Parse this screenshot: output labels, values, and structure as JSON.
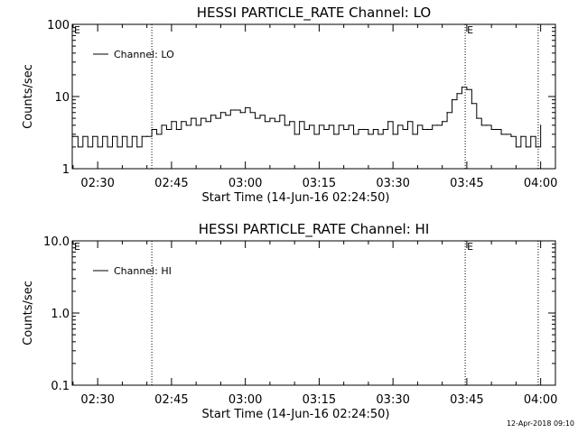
{
  "footer": {
    "timestamp": "12-Apr-2018 09:10"
  },
  "chart_data": [
    {
      "type": "line",
      "title": "HESSI PARTICLE_RATE Channel: LO",
      "xlabel": "Start Time (14-Jun-16 02:24:50)",
      "ylabel": "Counts/sec",
      "yscale": "log",
      "ylim": [
        1,
        100
      ],
      "yticks": [
        1,
        10,
        100
      ],
      "ytick_labels": [
        "1",
        "10",
        "100"
      ],
      "xlim": [
        "02:24:50",
        "04:03:00"
      ],
      "xticks": [
        "02:30",
        "02:45",
        "03:00",
        "03:15",
        "03:30",
        "03:45",
        "04:00"
      ],
      "xtick_labels": [
        "02:30",
        "02:45",
        "03:00",
        "03:15",
        "03:30",
        "03:45",
        "04:00"
      ],
      "grid": false,
      "legend": {
        "position": "top-left",
        "entries": [
          "Channel: LO"
        ]
      },
      "vlines": [
        "02:41:00",
        "03:44:40",
        "03:59:30"
      ],
      "annotations": [
        {
          "text": "E",
          "x": "02:24:50"
        },
        {
          "text": "E",
          "x": "03:44:40"
        }
      ],
      "series": [
        {
          "name": "Channel: LO",
          "x": [
            "02:25:00",
            "02:26:00",
            "02:27:00",
            "02:28:00",
            "02:29:00",
            "02:30:00",
            "02:31:00",
            "02:32:00",
            "02:33:00",
            "02:34:00",
            "02:35:00",
            "02:36:00",
            "02:37:00",
            "02:38:00",
            "02:39:00",
            "02:40:00",
            "02:41:00",
            "02:42:00",
            "02:43:00",
            "02:44:00",
            "02:45:00",
            "02:46:00",
            "02:47:00",
            "02:48:00",
            "02:49:00",
            "02:50:00",
            "02:51:00",
            "02:52:00",
            "02:53:00",
            "02:54:00",
            "02:55:00",
            "02:56:00",
            "02:57:00",
            "02:58:00",
            "02:59:00",
            "03:00:00",
            "03:01:00",
            "03:02:00",
            "03:03:00",
            "03:04:00",
            "03:05:00",
            "03:06:00",
            "03:07:00",
            "03:08:00",
            "03:09:00",
            "03:10:00",
            "03:11:00",
            "03:12:00",
            "03:13:00",
            "03:14:00",
            "03:15:00",
            "03:16:00",
            "03:17:00",
            "03:18:00",
            "03:19:00",
            "03:20:00",
            "03:21:00",
            "03:22:00",
            "03:23:00",
            "03:24:00",
            "03:25:00",
            "03:26:00",
            "03:27:00",
            "03:28:00",
            "03:29:00",
            "03:30:00",
            "03:31:00",
            "03:32:00",
            "03:33:00",
            "03:34:00",
            "03:35:00",
            "03:36:00",
            "03:37:00",
            "03:38:00",
            "03:39:00",
            "03:40:00",
            "03:41:00",
            "03:42:00",
            "03:43:00",
            "03:44:00",
            "03:45:00",
            "03:46:00",
            "03:47:00",
            "03:48:00",
            "03:49:00",
            "03:50:00",
            "03:51:00",
            "03:52:00",
            "03:53:00",
            "03:54:00",
            "03:55:00",
            "03:56:00",
            "03:57:00",
            "03:58:00",
            "03:59:00",
            "04:00:00"
          ],
          "y": [
            2.8,
            2.0,
            2.8,
            2.0,
            2.8,
            2.0,
            2.8,
            2.0,
            2.8,
            2.0,
            2.8,
            2.0,
            2.8,
            2.0,
            2.8,
            2.8,
            3.5,
            3.0,
            4.0,
            3.5,
            4.5,
            3.5,
            4.5,
            4.0,
            5.0,
            4.0,
            5.0,
            4.5,
            5.5,
            5.0,
            6.0,
            5.5,
            6.5,
            6.5,
            6.0,
            7.0,
            6.0,
            5.0,
            5.5,
            4.5,
            5.0,
            4.5,
            5.5,
            4.0,
            4.5,
            3.0,
            4.5,
            3.5,
            4.0,
            3.0,
            4.0,
            3.5,
            4.0,
            3.0,
            4.0,
            3.5,
            4.0,
            3.0,
            3.5,
            3.5,
            3.0,
            3.5,
            3.0,
            3.5,
            4.5,
            3.0,
            4.0,
            3.5,
            4.5,
            3.0,
            4.0,
            3.5,
            3.5,
            4.0,
            4.0,
            4.5,
            6.0,
            9.0,
            11.0,
            13.5,
            12.5,
            8.0,
            5.0,
            4.0,
            4.0,
            3.5,
            3.5,
            3.0,
            3.0,
            2.8,
            2.0,
            2.8,
            2.0,
            2.8,
            2.0,
            4.0
          ]
        }
      ]
    },
    {
      "type": "line",
      "title": "HESSI PARTICLE_RATE Channel: HI",
      "xlabel": "Start Time (14-Jun-16 02:24:50)",
      "ylabel": "Counts/sec",
      "yscale": "log",
      "ylim": [
        0.1,
        10
      ],
      "yticks": [
        0.1,
        1,
        10
      ],
      "ytick_labels": [
        "0.1",
        "1.0",
        "10.0"
      ],
      "xlim": [
        "02:24:50",
        "04:03:00"
      ],
      "xticks": [
        "02:30",
        "02:45",
        "03:00",
        "03:15",
        "03:30",
        "03:45",
        "04:00"
      ],
      "xtick_labels": [
        "02:30",
        "02:45",
        "03:00",
        "03:15",
        "03:30",
        "03:45",
        "04:00"
      ],
      "grid": false,
      "legend": {
        "position": "top-left",
        "entries": [
          "Channel: HI"
        ]
      },
      "vlines": [
        "02:41:00",
        "03:44:40",
        "03:59:30"
      ],
      "annotations": [
        {
          "text": "E",
          "x": "02:24:50"
        },
        {
          "text": "E",
          "x": "03:44:40"
        }
      ],
      "series": [
        {
          "name": "Channel: HI",
          "x": [],
          "y": []
        }
      ]
    }
  ]
}
